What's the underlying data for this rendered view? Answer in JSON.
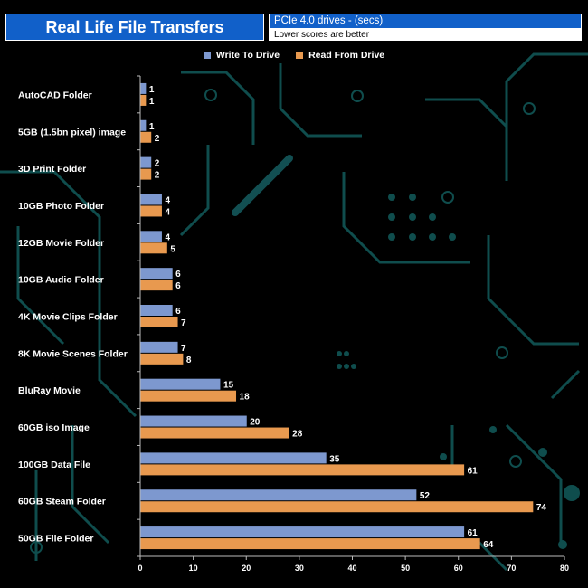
{
  "header": {
    "title": "Real Life File Transfers",
    "subtitle": "PCIe 4.0 drives - (secs)",
    "note": "Lower scores are better"
  },
  "colors": {
    "title_bg": "#1160c9",
    "write": "#7d98cf",
    "read": "#e8994f",
    "circuit": "#0f4d4d"
  },
  "chart_data": {
    "type": "bar",
    "orientation": "horizontal",
    "categories": [
      "AutoCAD Folder",
      "5GB (1.5bn pixel) image",
      "3D Print Folder",
      "10GB Photo Folder",
      "12GB Movie Folder",
      "10GB Audio Folder",
      "4K Movie Clips Folder",
      "8K Movie Scenes Folder",
      "BluRay Movie",
      "60GB iso Image",
      "100GB Data File",
      "60GB Steam Folder",
      "50GB File Folder"
    ],
    "series": [
      {
        "name": "Write To  Drive",
        "values": [
          1,
          1,
          2,
          4,
          4,
          6,
          6,
          7,
          15,
          20,
          35,
          52,
          61
        ]
      },
      {
        "name": "Read From  Drive",
        "values": [
          1,
          2,
          2,
          4,
          5,
          6,
          7,
          8,
          18,
          28,
          61,
          74,
          64
        ]
      }
    ],
    "xlim": [
      0,
      80
    ],
    "xticks": [
      0,
      10,
      20,
      30,
      40,
      50,
      60,
      70,
      80
    ],
    "grid": false,
    "legend_position": "top-center"
  }
}
